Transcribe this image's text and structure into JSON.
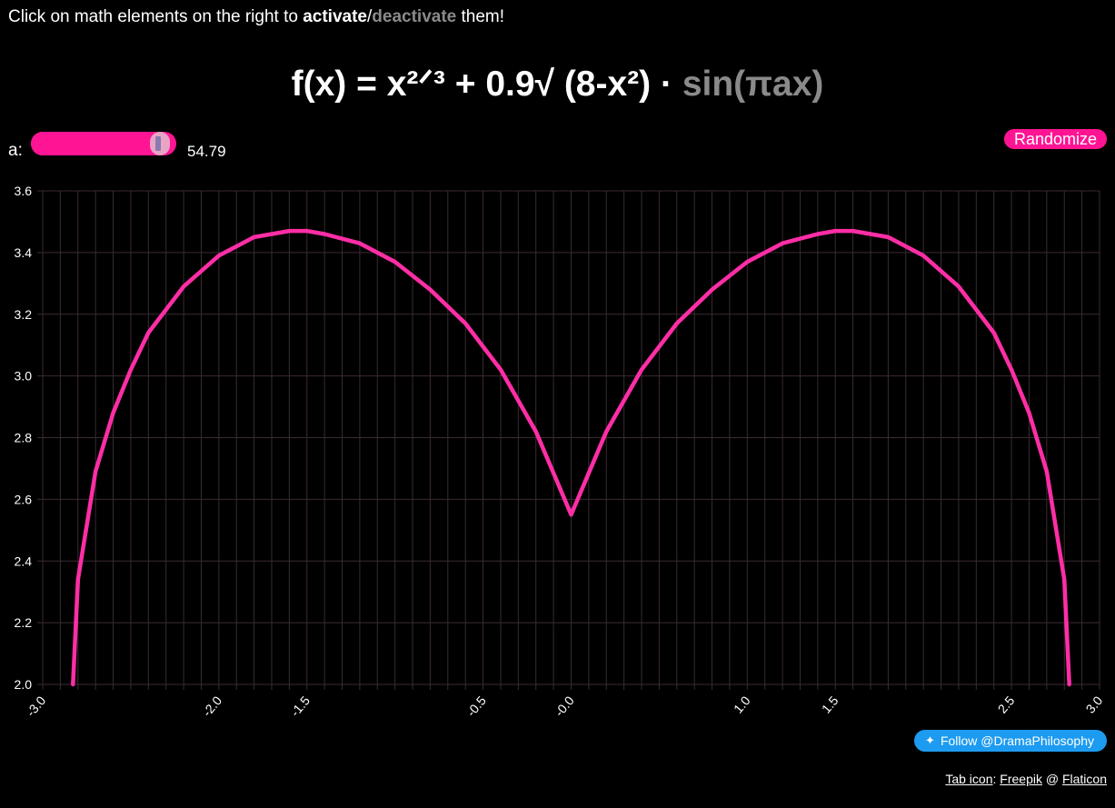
{
  "instructions": {
    "prefix": "Click on math elements on the right to ",
    "activate": "activate",
    "slash": "/",
    "deactivate": "deactivate",
    "suffix": " them!"
  },
  "formula": {
    "lhs": "f(x) = ",
    "term1": "x²ᐟ³",
    "plus": " + ",
    "term2": "0.9√ (8-x²)",
    "dot": " · ",
    "term3": "sin(πax)"
  },
  "slider": {
    "label": "a:",
    "value": "54.79",
    "fraction": 0.915
  },
  "randomize_label": "Randomize",
  "twitter_label": "Follow @DramaPhilosophy",
  "credits": {
    "prefix": "Tab icon",
    "colon": ": ",
    "author": "Freepik",
    "at": " @ ",
    "site": "Flaticon"
  },
  "colors": {
    "accent": "#ff1493",
    "curve": "#ff2ea6",
    "grid": "#3a2a33",
    "inactive": "#8a8a8a"
  },
  "chart_data": {
    "type": "line",
    "function": "f(x) = x^(2/3) + 0.9*sqrt(8 - x^2)",
    "series": [
      {
        "x": [
          -2.828,
          -2.8,
          -2.7,
          -2.6,
          -2.5,
          -2.4,
          -2.2,
          -2.0,
          -1.8,
          -1.6,
          -1.5,
          -1.4,
          -1.2,
          -1.0,
          -0.8,
          -0.6,
          -0.4,
          -0.2,
          0.0,
          0.2,
          0.4,
          0.6,
          0.8,
          1.0,
          1.2,
          1.4,
          1.5,
          1.6,
          1.8,
          2.0,
          2.2,
          2.4,
          2.5,
          2.6,
          2.7,
          2.8,
          2.828
        ],
        "y": [
          2.0,
          2.34,
          2.69,
          2.88,
          3.02,
          3.14,
          3.29,
          3.39,
          3.45,
          3.47,
          3.47,
          3.46,
          3.43,
          3.37,
          3.28,
          3.17,
          3.02,
          2.82,
          2.55,
          2.82,
          3.02,
          3.17,
          3.28,
          3.37,
          3.43,
          3.46,
          3.47,
          3.47,
          3.45,
          3.39,
          3.29,
          3.14,
          3.02,
          2.88,
          2.69,
          2.34,
          2.0
        ]
      }
    ],
    "xlim": [
      -3.0,
      3.0
    ],
    "ylim": [
      2.0,
      3.6
    ],
    "x_ticks": [
      "-3.0",
      "-2.0",
      "-1.5",
      "-0.5",
      "-0.0",
      "1.0",
      "1.5",
      "2.5",
      "3.0"
    ],
    "x_tick_values": [
      -3.0,
      -2.0,
      -1.5,
      -0.5,
      0.0,
      1.0,
      1.5,
      2.5,
      3.0
    ],
    "y_ticks": [
      "2.0",
      "2.2",
      "2.4",
      "2.6",
      "2.8",
      "3.0",
      "3.2",
      "3.4",
      "3.6"
    ],
    "y_tick_values": [
      2.0,
      2.2,
      2.4,
      2.6,
      2.8,
      3.0,
      3.2,
      3.4,
      3.6
    ],
    "grid": true,
    "legend": "none",
    "xlabel": "",
    "ylabel": "",
    "title": ""
  }
}
